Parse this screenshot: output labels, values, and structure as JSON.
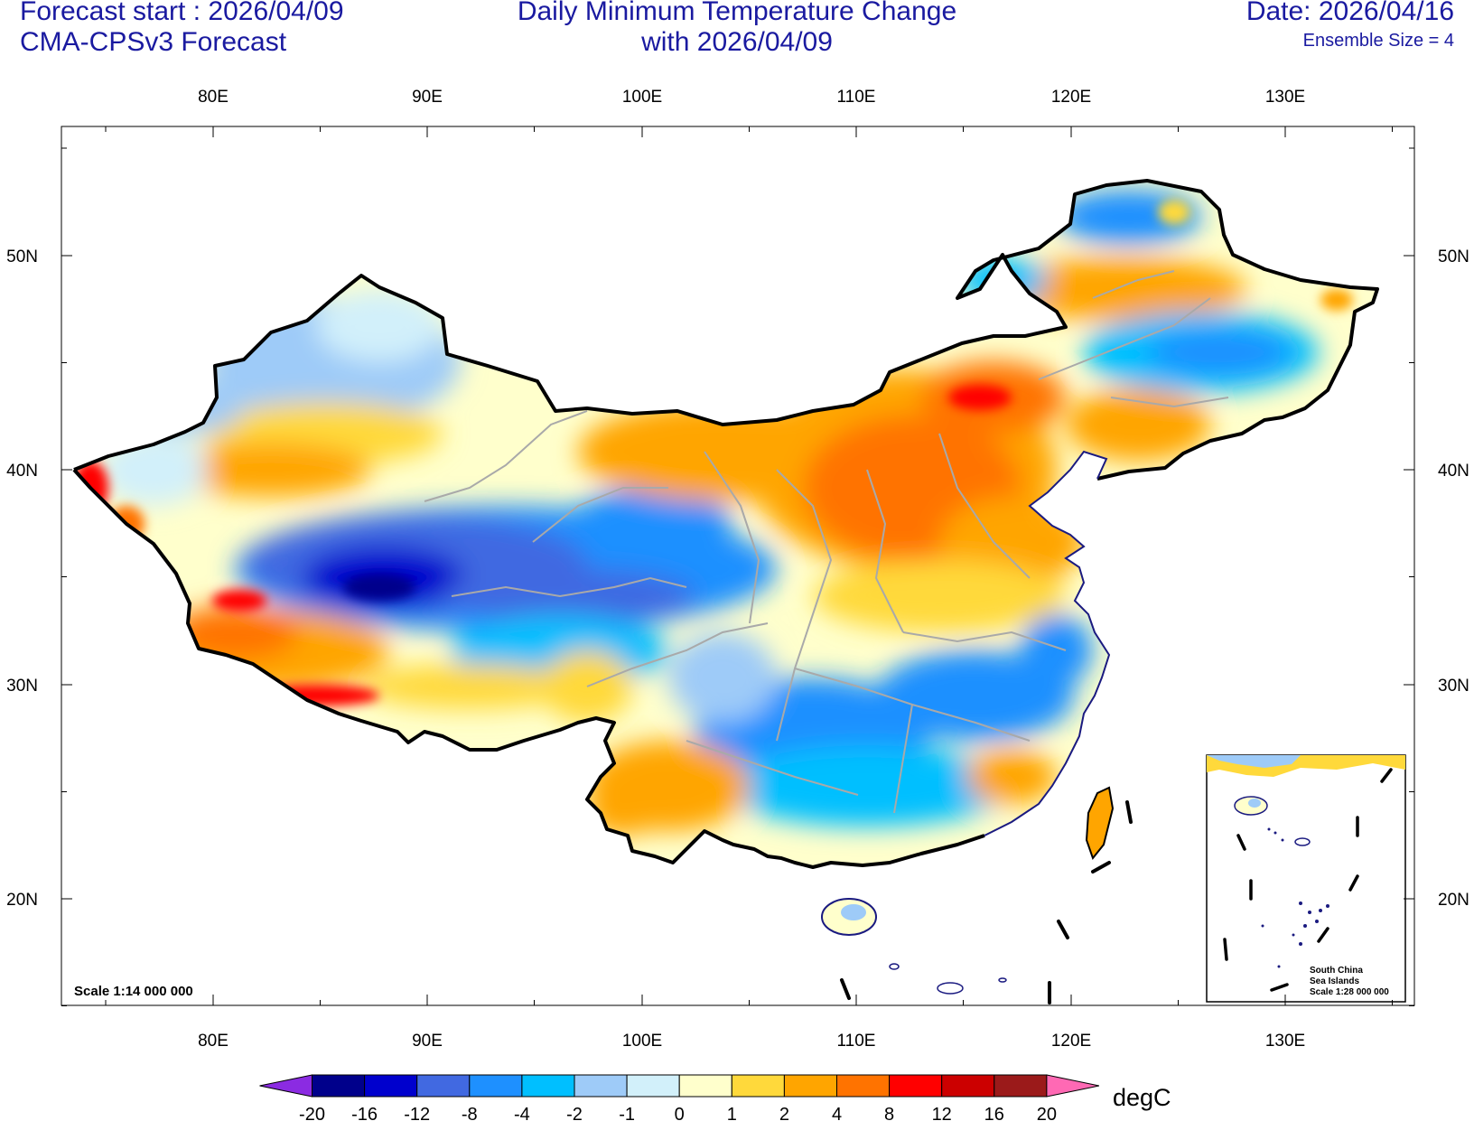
{
  "header": {
    "left_line1": "Forecast start : 2026/04/09",
    "left_line2": "CMA-CPSv3 Forecast",
    "center_line1": "Daily Minimum Temperature Change",
    "center_line2": "with 2026/04/09",
    "right_line1": "Date: 2026/04/16",
    "right_line2": "Ensemble Size = 4"
  },
  "map": {
    "lon_labels": [
      "80E",
      "90E",
      "100E",
      "110E",
      "120E",
      "130E"
    ],
    "lat_labels": [
      "50N",
      "40N",
      "30N",
      "20N"
    ],
    "scale_label": "Scale 1:14 000 000",
    "inset": {
      "line1": "South China",
      "line2": "Sea Islands",
      "line3": "Scale 1:28 000 000"
    }
  },
  "colorbar": {
    "unit": "degC",
    "labels": [
      "-20",
      "-16",
      "-12",
      "-8",
      "-4",
      "-2",
      "-1",
      "0",
      "1",
      "2",
      "4",
      "8",
      "12",
      "16",
      "20"
    ],
    "colors": [
      "#8b2be2",
      "#00008b",
      "#0000cd",
      "#4169e1",
      "#1e90ff",
      "#00bfff",
      "#9ecbf8",
      "#d2f0fa",
      "#ffffcc",
      "#ffd93b",
      "#ffa500",
      "#ff7300",
      "#ff0000",
      "#cc0000",
      "#9b1a1a",
      "#ff69b4"
    ]
  },
  "regions": [
    {
      "name": "northeast",
      "color": "#ffa500"
    },
    {
      "name": "north-china",
      "color": "#ff7300"
    },
    {
      "name": "tibet-plateau",
      "color": "#0000cd"
    },
    {
      "name": "south-china",
      "color": "#1e90ff"
    },
    {
      "name": "southwest-tibet",
      "color": "#ff0000"
    }
  ]
}
